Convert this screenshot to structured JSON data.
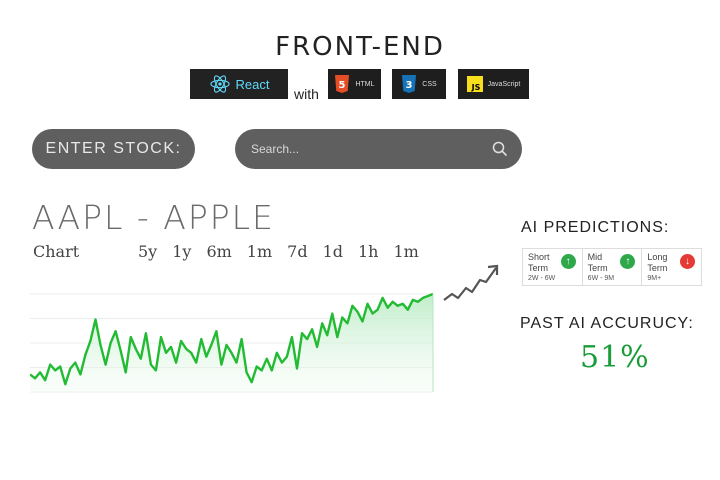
{
  "header": {
    "title": "FRONT-END",
    "with_text": "with",
    "badges": {
      "react": "React",
      "html_num": "5",
      "html": "HTML",
      "css_num": "3",
      "css": "CSS",
      "js_tag": "JS",
      "js": "JavaScript"
    }
  },
  "controls": {
    "enter_label": "ENTER STOCK:",
    "search_placeholder": "Search..."
  },
  "stock": {
    "title": "AAPL - APPLE",
    "chart_label": "Chart",
    "ranges": [
      "5y",
      "1y",
      "6m",
      "1m",
      "7d",
      "1d",
      "1h",
      "1m"
    ]
  },
  "ai": {
    "title": "AI PREDICTIONS:",
    "predictions": [
      {
        "line1": "Short",
        "line2": "Term",
        "range": "2W - 6W",
        "direction": "up"
      },
      {
        "line1": "Mid",
        "line2": "Term",
        "range": "6W - 9M",
        "direction": "up"
      },
      {
        "line1": "Long",
        "line2": "Term",
        "range": "9M+",
        "direction": "down"
      }
    ],
    "past_title": "PAST AI ACCURUCY:",
    "accuracy": "51%"
  },
  "colors": {
    "line": "#22bb33",
    "up": "#2ea84a",
    "down": "#e53935",
    "pill": "#5f5f5f",
    "accuracy": "#1a9c3a"
  },
  "chart_data": {
    "type": "line",
    "x": [
      0,
      1,
      2,
      3,
      4,
      5,
      6,
      7,
      8,
      9,
      10,
      11,
      12,
      13,
      14,
      15,
      16,
      17,
      18,
      19,
      20,
      21,
      22,
      23,
      24,
      25,
      26,
      27,
      28,
      29,
      30,
      31,
      32,
      33,
      34,
      35,
      36,
      37,
      38,
      39,
      40,
      41,
      42,
      43,
      44,
      45,
      46,
      47,
      48,
      49,
      50,
      51,
      52,
      53,
      54,
      55,
      56,
      57,
      58,
      59,
      60,
      61,
      62,
      63,
      64,
      65,
      66,
      67,
      68,
      69,
      70,
      71,
      72,
      73,
      74,
      75,
      76,
      77,
      78,
      79,
      80
    ],
    "values": [
      18,
      14,
      20,
      12,
      28,
      22,
      26,
      8,
      24,
      30,
      18,
      38,
      52,
      74,
      48,
      28,
      50,
      62,
      42,
      20,
      56,
      44,
      34,
      60,
      28,
      22,
      56,
      40,
      46,
      30,
      52,
      44,
      40,
      30,
      54,
      36,
      48,
      62,
      28,
      48,
      40,
      30,
      54,
      20,
      10,
      26,
      22,
      34,
      22,
      40,
      30,
      36,
      56,
      24,
      60,
      54,
      64,
      46,
      70,
      58,
      80,
      56,
      76,
      70,
      88,
      82,
      72,
      90,
      80,
      84,
      96,
      86,
      92,
      88,
      90,
      84,
      94,
      92,
      96,
      98,
      100
    ],
    "ylim": [
      0,
      100
    ]
  }
}
